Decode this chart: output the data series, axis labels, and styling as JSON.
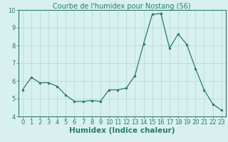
{
  "x": [
    0,
    1,
    2,
    3,
    4,
    5,
    6,
    7,
    8,
    9,
    10,
    11,
    12,
    13,
    14,
    15,
    16,
    17,
    18,
    19,
    20,
    21,
    22,
    23
  ],
  "y": [
    5.5,
    6.2,
    5.9,
    5.9,
    5.7,
    5.2,
    4.85,
    4.85,
    4.9,
    4.85,
    5.5,
    5.5,
    5.6,
    6.3,
    8.1,
    9.75,
    9.8,
    7.85,
    8.65,
    8.05,
    6.7,
    5.5,
    4.7,
    4.35
  ],
  "line_color": "#2a7a6a",
  "marker_color": "#2a7a6a",
  "bg_color": "#d8f0f0",
  "grid_color": "#b0d8d8",
  "axis_color": "#2a7a6a",
  "title": "Courbe de l'humidex pour Nostang (56)",
  "xlabel": "Humidex (Indice chaleur)",
  "xlim": [
    -0.5,
    23.5
  ],
  "ylim": [
    4,
    10
  ],
  "yticks": [
    4,
    5,
    6,
    7,
    8,
    9,
    10
  ],
  "xticks": [
    0,
    1,
    2,
    3,
    4,
    5,
    6,
    7,
    8,
    9,
    10,
    11,
    12,
    13,
    14,
    15,
    16,
    17,
    18,
    19,
    20,
    21,
    22,
    23
  ],
  "xlabel_fontsize": 7.5,
  "tick_fontsize": 6,
  "title_fontsize": 7
}
